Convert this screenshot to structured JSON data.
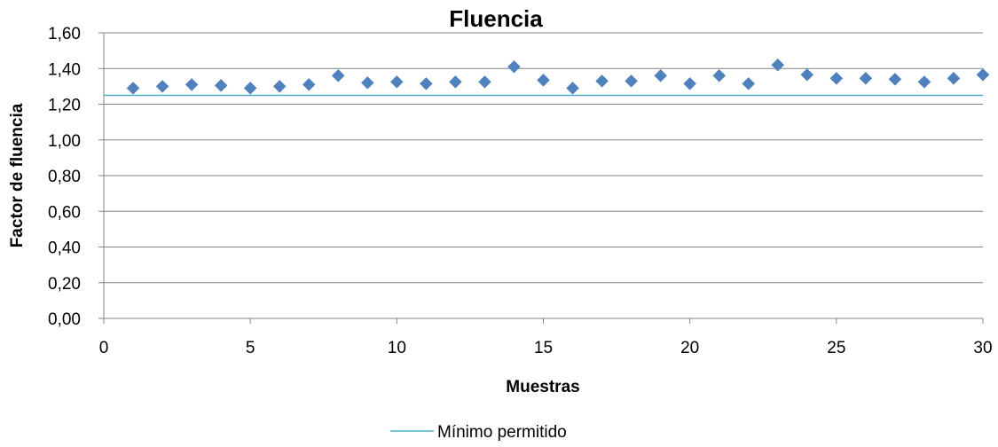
{
  "chart_data": {
    "type": "scatter",
    "title": "Fluencia",
    "xlabel": "Muestras",
    "ylabel": "Factor de fluencia",
    "xlim": [
      0,
      30
    ],
    "ylim": [
      0,
      1.6
    ],
    "x_ticks": [
      "0",
      "5",
      "10",
      "15",
      "20",
      "25",
      "30"
    ],
    "y_ticks": [
      "0,00",
      "0,20",
      "0,40",
      "0,60",
      "0,80",
      "1,00",
      "1,20",
      "1,40",
      "1,60"
    ],
    "grid": "horizontal",
    "legend_position": "bottom",
    "series": [
      {
        "marker": "diamond",
        "color": "#4F81BD",
        "points": [
          [
            1,
            1.29
          ],
          [
            2,
            1.3
          ],
          [
            3,
            1.31
          ],
          [
            4,
            1.305
          ],
          [
            5,
            1.29
          ],
          [
            6,
            1.3
          ],
          [
            7,
            1.31
          ],
          [
            8,
            1.36
          ],
          [
            9,
            1.32
          ],
          [
            10,
            1.325
          ],
          [
            11,
            1.315
          ],
          [
            12,
            1.325
          ],
          [
            13,
            1.325
          ],
          [
            14,
            1.41
          ],
          [
            15,
            1.335
          ],
          [
            16,
            1.29
          ],
          [
            17,
            1.33
          ],
          [
            18,
            1.33
          ],
          [
            19,
            1.36
          ],
          [
            20,
            1.315
          ],
          [
            21,
            1.36
          ],
          [
            22,
            1.315
          ],
          [
            23,
            1.42
          ],
          [
            24,
            1.365
          ],
          [
            25,
            1.345
          ],
          [
            26,
            1.345
          ],
          [
            27,
            1.34
          ],
          [
            28,
            1.325
          ],
          [
            29,
            1.345
          ],
          [
            30,
            1.365
          ]
        ]
      },
      {
        "name": "Mínimo permitido",
        "type": "line",
        "color": "#4BACC6",
        "y": 1.25
      }
    ]
  }
}
